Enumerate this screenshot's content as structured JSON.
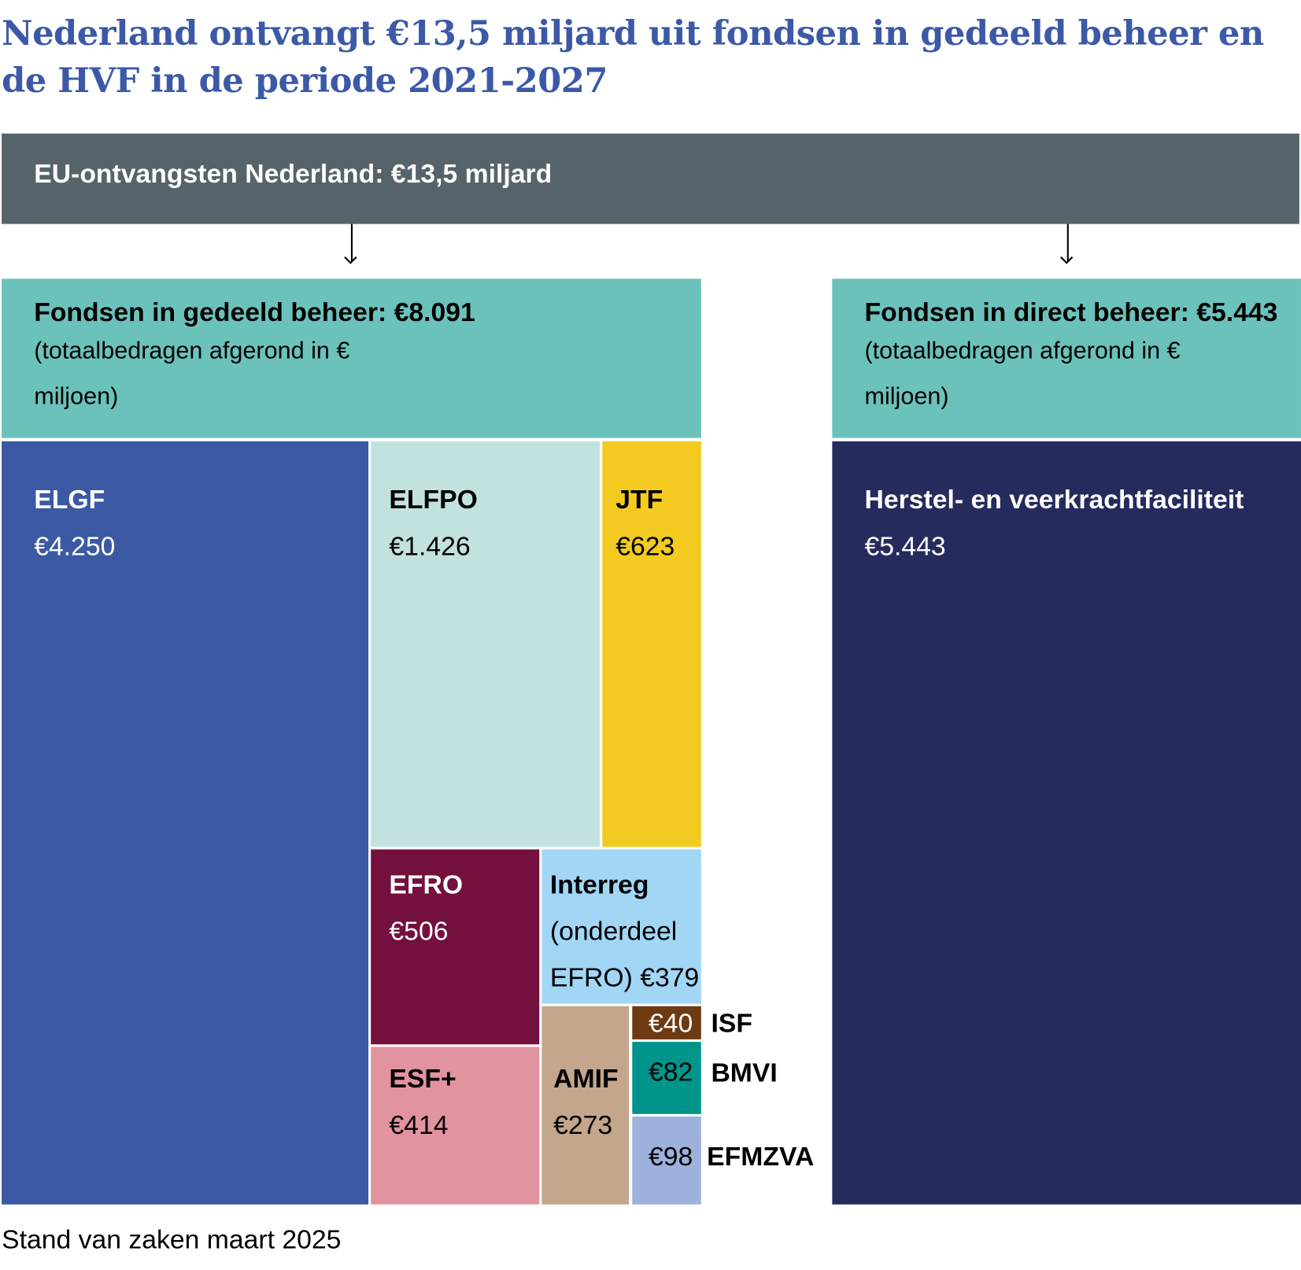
{
  "title": "Nederland ontvangt €13,5 miljard uit fondsen in gedeeld beheer en de HVF in de periode 2021-2027",
  "top_bar": "EU-ontvangsten Nederland: €13,5 miljard",
  "groups": [
    {
      "title": "Fondsen in gedeeld beheer: €8.091",
      "subtitle": "(totaalbedragen afgerond in € miljoen)",
      "color": "#6bc2bb"
    },
    {
      "title": "Fondsen in direct beheer: €5.443",
      "subtitle": "(totaalbedragen afgerond in € miljoen)",
      "color": "#6bc2bb"
    }
  ],
  "footer": "Stand van zaken maart 2025",
  "chart_data": {
    "type": "treemap",
    "unit": "€ miljoen",
    "total_label": "€13,5 miljard",
    "items": [
      {
        "name": "ELGF",
        "value": 4250,
        "label": "€4.250",
        "group": "Fondsen in gedeeld beheer",
        "color": "#3c59a4"
      },
      {
        "name": "ELFPO",
        "value": 1426,
        "label": "€1.426",
        "group": "Fondsen in gedeeld beheer",
        "color": "#c2e2e0"
      },
      {
        "name": "JTF",
        "value": 623,
        "label": "€623",
        "group": "Fondsen in gedeeld beheer",
        "color": "#f3ca20"
      },
      {
        "name": "EFRO",
        "value": 506,
        "label": "€506",
        "group": "Fondsen in gedeeld beheer",
        "color": "#73103d"
      },
      {
        "name": "Interreg",
        "sub": "(onderdeel EFRO)",
        "value": 379,
        "label": "€379",
        "group": "Fondsen in gedeeld beheer",
        "color": "#a2d6f5"
      },
      {
        "name": "ESF+",
        "value": 414,
        "label": "€414",
        "group": "Fondsen in gedeeld beheer",
        "color": "#e293a0"
      },
      {
        "name": "AMIF",
        "value": 273,
        "label": "€273",
        "group": "Fondsen in gedeeld beheer",
        "color": "#c4a68c"
      },
      {
        "name": "ISF",
        "value": 40,
        "label": "€40",
        "group": "Fondsen in gedeeld beheer",
        "color": "#6e3a12"
      },
      {
        "name": "BMVI",
        "value": 82,
        "label": "€82",
        "group": "Fondsen in gedeeld beheer",
        "color": "#00958a"
      },
      {
        "name": "EFMZVA",
        "value": 98,
        "label": "€98",
        "group": "Fondsen in gedeeld beheer",
        "color": "#9eb0dc"
      },
      {
        "name": "Herstel- en veerkrachtfaciliteit",
        "value": 5443,
        "label": "€5.443",
        "group": "Fondsen in direct beheer",
        "color": "#262b5e"
      }
    ]
  }
}
